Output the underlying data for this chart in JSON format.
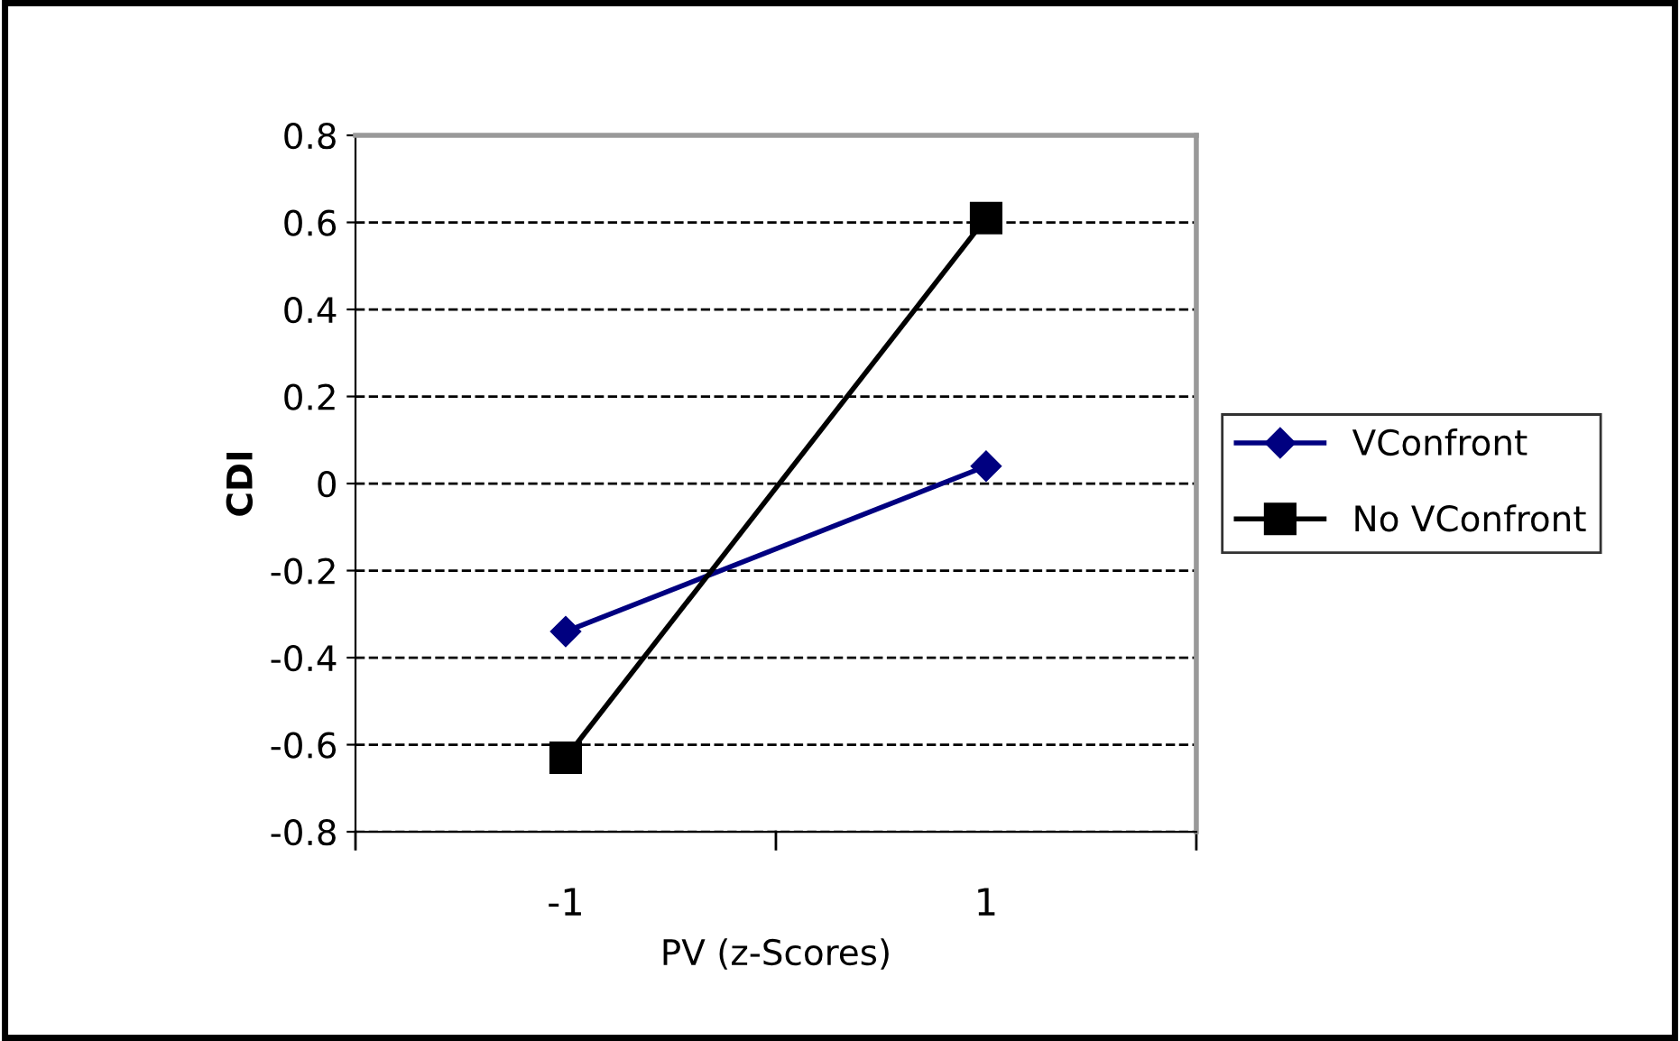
{
  "chart_data": {
    "type": "line",
    "xlabel": "PV (z-Scores)",
    "ylabel": "CDI",
    "categories": [
      "-1",
      "1"
    ],
    "series": [
      {
        "name": "VConfront",
        "color": "#000080",
        "values": [
          -0.34,
          0.04
        ],
        "marker": "diamond"
      },
      {
        "name": "No VConfront",
        "color": "#000000",
        "values": [
          -0.63,
          0.61
        ],
        "marker": "square"
      }
    ],
    "ylim": [
      -0.8,
      0.8
    ],
    "yticks": [
      -0.8,
      -0.6,
      -0.4,
      -0.2,
      0,
      0.2,
      0.4,
      0.6,
      0.8
    ],
    "grid": "y",
    "legend": "right",
    "line_style": "solid"
  }
}
